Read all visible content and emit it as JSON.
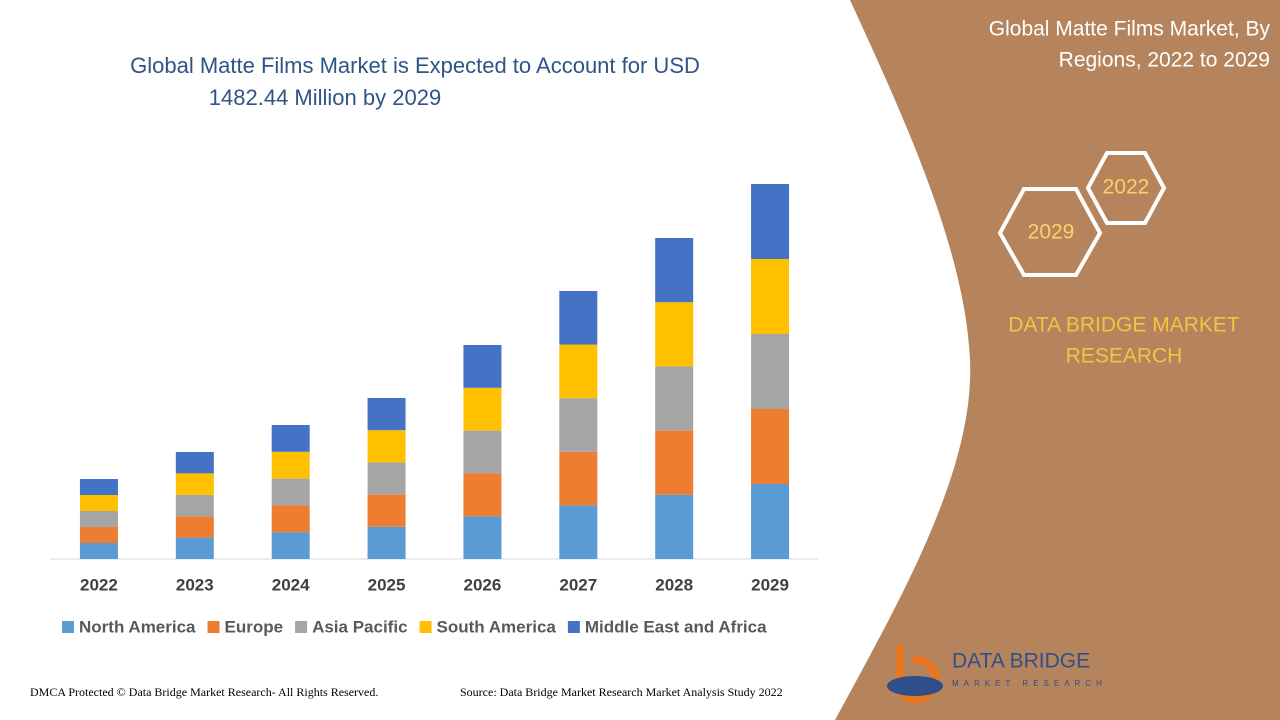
{
  "chart_data": {
    "type": "stacked-bar",
    "title": [
      "Global Matte Films Market is Expected to Account for USD",
      "1482.44 Million by 2029"
    ],
    "categories": [
      "2022",
      "2023",
      "2024",
      "2025",
      "2026",
      "2027",
      "2028",
      "2029"
    ],
    "series": [
      {
        "name": "North America",
        "color": "#5b9bd5",
        "values": [
          16,
          21.4,
          26.8,
          32.2,
          42.8,
          53.6,
          64.2,
          75
        ]
      },
      {
        "name": "Europe",
        "color": "#ed7d31",
        "values": [
          16,
          21.4,
          26.8,
          32.2,
          42.8,
          53.6,
          64.2,
          75
        ]
      },
      {
        "name": "Asia Pacific",
        "color": "#a5a5a5",
        "values": [
          16,
          21.4,
          26.8,
          32.2,
          42.8,
          53.6,
          64.2,
          75
        ]
      },
      {
        "name": "South America",
        "color": "#ffc000",
        "values": [
          16,
          21.4,
          26.8,
          32.2,
          42.8,
          53.6,
          64.2,
          75
        ]
      },
      {
        "name": "Middle East and Africa",
        "color": "#4472c4",
        "values": [
          16,
          21.4,
          26.8,
          32.2,
          42.8,
          53.6,
          64.2,
          75
        ]
      }
    ],
    "ylim": [
      0,
      375
    ],
    "legend": "bottom"
  },
  "panel": {
    "title": [
      "Global Matte Films Market, By",
      "Regions, 2022 to 2029"
    ],
    "hex_start": "2022",
    "hex_end": "2029",
    "brand": [
      "DATA BRIDGE MARKET",
      "RESEARCH"
    ]
  },
  "logo": {
    "name": "DATA BRIDGE",
    "tagline": "MARKET RESEARCH"
  },
  "footer": {
    "left": "DMCA Protected © Data Bridge Market Research- All Rights Reserved.",
    "right": "Source: Data Bridge Market Research Market Analysis Study 2022"
  }
}
